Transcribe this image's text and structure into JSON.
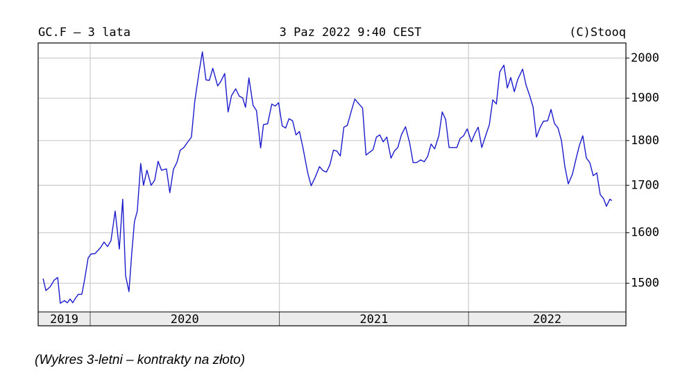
{
  "chart_data": {
    "type": "line",
    "title": "GC.F – 3 lata",
    "date": "3 Paz 2022 9:40 CEST",
    "source": "(C)Stooq",
    "caption": "(Wykres 3-letni – kontrakty na złoto)",
    "log_scale": true,
    "grid": true,
    "color": "#1a1acc",
    "ylim": [
      1446,
      2039
    ],
    "yticks": [
      1500,
      1600,
      1700,
      1800,
      1900,
      2000
    ],
    "xlim": [
      2019.725,
      2022.832
    ],
    "xticks": [
      2020,
      2021,
      2022
    ],
    "year_labels": [
      2019,
      2020,
      2021,
      2022
    ],
    "x": [
      2019.751,
      2019.766,
      2019.788,
      2019.81,
      2019.828,
      2019.842,
      2019.864,
      2019.879,
      2019.894,
      2019.908,
      2019.923,
      2019.938,
      2019.956,
      2019.971,
      2019.989,
      2020.004,
      2020.026,
      2020.055,
      2020.073,
      2020.092,
      2020.11,
      2020.132,
      2020.154,
      2020.172,
      2020.187,
      2020.205,
      2020.22,
      2020.234,
      2020.249,
      2020.267,
      2020.282,
      2020.3,
      2020.322,
      2020.341,
      2020.359,
      2020.377,
      2020.403,
      2020.421,
      2020.44,
      2020.458,
      2020.476,
      2020.495,
      2020.513,
      2020.535,
      2020.553,
      2020.575,
      2020.593,
      2020.612,
      2020.63,
      2020.648,
      2020.674,
      2020.689,
      2020.711,
      2020.729,
      2020.747,
      2020.769,
      2020.788,
      2020.806,
      2020.821,
      2020.839,
      2020.861,
      2020.879,
      2020.901,
      2020.916,
      2020.938,
      2020.96,
      2020.978,
      2020.996,
      2021.015,
      2021.033,
      2021.051,
      2021.07,
      2021.088,
      2021.106,
      2021.125,
      2021.15,
      2021.168,
      2021.19,
      2021.212,
      2021.231,
      2021.249,
      2021.267,
      2021.286,
      2021.304,
      2021.322,
      2021.341,
      2021.359,
      2021.381,
      2021.399,
      2021.421,
      2021.44,
      2021.458,
      2021.476,
      2021.495,
      2021.513,
      2021.531,
      2021.549,
      2021.568,
      2021.59,
      2021.608,
      2021.626,
      2021.645,
      2021.667,
      2021.689,
      2021.707,
      2021.725,
      2021.747,
      2021.766,
      2021.784,
      2021.802,
      2021.821,
      2021.843,
      2021.861,
      2021.879,
      2021.897,
      2021.916,
      2021.938,
      2021.956,
      2021.974,
      2021.993,
      2022.015,
      2022.033,
      2022.051,
      2022.07,
      2022.088,
      2022.11,
      2022.128,
      2022.147,
      2022.165,
      2022.187,
      2022.205,
      2022.223,
      2022.242,
      2022.26,
      2022.286,
      2022.304,
      2022.322,
      2022.341,
      2022.359,
      2022.377,
      2022.396,
      2022.418,
      2022.436,
      2022.454,
      2022.473,
      2022.491,
      2022.509,
      2022.527,
      2022.549,
      2022.568,
      2022.586,
      2022.604,
      2022.623,
      2022.641,
      2022.659,
      2022.678,
      2022.696,
      2022.714,
      2022.729,
      2022.747,
      2022.758
    ],
    "values": [
      1509,
      1486,
      1493,
      1506,
      1511,
      1462,
      1467,
      1463,
      1470,
      1463,
      1472,
      1479,
      1479,
      1508,
      1549,
      1557,
      1558,
      1570,
      1581,
      1572,
      1584,
      1645,
      1567,
      1670,
      1515,
      1484,
      1560,
      1623,
      1645,
      1748,
      1700,
      1733,
      1700,
      1711,
      1753,
      1733,
      1736,
      1684,
      1735,
      1750,
      1778,
      1784,
      1795,
      1808,
      1893,
      1963,
      2016,
      1945,
      1944,
      1974,
      1930,
      1940,
      1961,
      1867,
      1906,
      1923,
      1905,
      1901,
      1878,
      1950,
      1883,
      1870,
      1783,
      1837,
      1839,
      1886,
      1881,
      1889,
      1834,
      1829,
      1851,
      1846,
      1813,
      1821,
      1783,
      1727,
      1699,
      1718,
      1741,
      1732,
      1729,
      1745,
      1778,
      1776,
      1765,
      1831,
      1835,
      1870,
      1898,
      1886,
      1876,
      1767,
      1773,
      1779,
      1808,
      1813,
      1797,
      1808,
      1760,
      1776,
      1784,
      1813,
      1832,
      1794,
      1750,
      1750,
      1756,
      1752,
      1764,
      1792,
      1781,
      1811,
      1867,
      1849,
      1784,
      1784,
      1784,
      1805,
      1811,
      1827,
      1797,
      1816,
      1831,
      1784,
      1808,
      1837,
      1896,
      1886,
      1965,
      1982,
      1925,
      1951,
      1916,
      1946,
      1972,
      1932,
      1908,
      1879,
      1808,
      1829,
      1845,
      1846,
      1873,
      1840,
      1829,
      1800,
      1742,
      1703,
      1724,
      1758,
      1789,
      1811,
      1760,
      1750,
      1721,
      1727,
      1680,
      1671,
      1655,
      1670,
      1667
    ]
  }
}
